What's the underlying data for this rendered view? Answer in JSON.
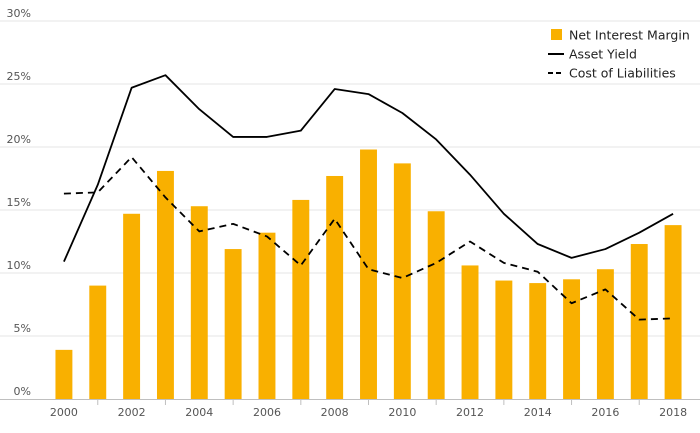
{
  "chart_data": {
    "type": "bar",
    "categories": [
      "2000",
      "2001",
      "2002",
      "2003",
      "2004",
      "2005",
      "2006",
      "2007",
      "2008",
      "2009",
      "2010",
      "2011",
      "2012",
      "2013",
      "2014",
      "2015",
      "2016",
      "2017",
      "2018"
    ],
    "x_tick_labels": [
      "2000",
      "2002",
      "2004",
      "2006",
      "2008",
      "2010",
      "2012",
      "2014",
      "2016",
      "2018"
    ],
    "y_tick_labels": [
      "0%",
      "5%",
      "10%",
      "15%",
      "20%",
      "25%",
      "30%"
    ],
    "ylim": [
      0,
      30
    ],
    "y_unit": "%",
    "grid": true,
    "legend_position": "top-right",
    "series": [
      {
        "name": "Net Interest Margin",
        "type": "bar",
        "color": "#F9B000",
        "values": [
          3.9,
          9.0,
          14.7,
          18.1,
          15.3,
          11.9,
          13.2,
          15.8,
          17.7,
          19.8,
          18.7,
          14.9,
          10.6,
          9.4,
          9.2,
          9.5,
          10.3,
          12.3,
          13.8
        ]
      },
      {
        "name": "Asset Yield",
        "type": "line",
        "style": "solid",
        "color": "#000000",
        "values": [
          10.9,
          17.0,
          24.7,
          25.7,
          23.0,
          20.8,
          20.8,
          21.3,
          24.6,
          24.2,
          22.7,
          20.6,
          17.8,
          14.7,
          12.3,
          11.2,
          11.9,
          13.2,
          14.7
        ]
      },
      {
        "name": "Cost of Liabilities",
        "type": "line",
        "style": "dashed",
        "color": "#000000",
        "values": [
          16.3,
          16.4,
          19.2,
          16.0,
          13.3,
          13.9,
          12.9,
          10.6,
          14.3,
          10.3,
          9.6,
          10.8,
          12.5,
          10.8,
          10.1,
          7.6,
          8.7,
          6.3,
          6.4
        ]
      }
    ]
  }
}
